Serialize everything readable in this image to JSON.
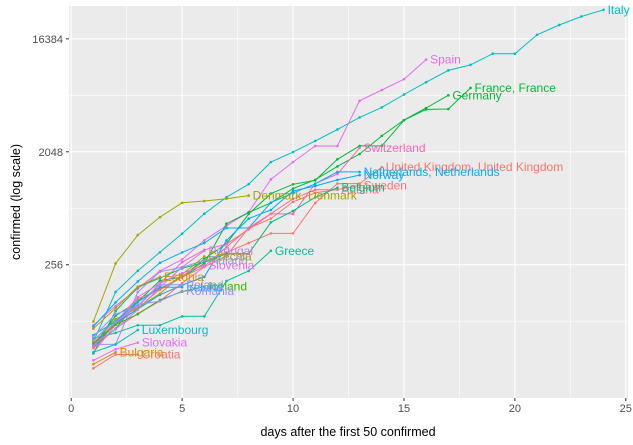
{
  "chart_data": {
    "type": "line",
    "title": "",
    "xlabel": "days after the first 50 confirmed",
    "ylabel": "confirmed  (log scale)",
    "y_scale": "log2",
    "xlim": [
      -0.1,
      25.1
    ],
    "ylim": [
      22,
      30000
    ],
    "x_ticks": [
      0,
      5,
      10,
      15,
      20,
      25
    ],
    "y_ticks": [
      256,
      2048,
      16384
    ],
    "grid": true,
    "legend": "none",
    "point_markers": true,
    "series": [
      {
        "name": "Italy",
        "color": "#00BFC4",
        "points": [
          [
            1,
            62
          ],
          [
            2,
            155
          ],
          [
            3,
            229
          ],
          [
            4,
            322
          ],
          [
            5,
            453
          ],
          [
            6,
            655
          ],
          [
            7,
            888
          ],
          [
            8,
            1128
          ],
          [
            9,
            1694
          ],
          [
            10,
            2036
          ],
          [
            11,
            2502
          ],
          [
            12,
            3089
          ],
          [
            13,
            3858
          ],
          [
            14,
            4636
          ],
          [
            15,
            5883
          ],
          [
            16,
            7375
          ],
          [
            17,
            9172
          ],
          [
            18,
            10149
          ],
          [
            19,
            12462
          ],
          [
            20,
            12462
          ],
          [
            21,
            17660
          ],
          [
            22,
            21157
          ],
          [
            23,
            24747
          ],
          [
            24,
            27980
          ]
        ],
        "label": "Italy"
      },
      {
        "name": "Spain",
        "color": "#E76BF3",
        "points": [
          [
            1,
            84
          ],
          [
            2,
            120
          ],
          [
            3,
            165
          ],
          [
            4,
            228
          ],
          [
            5,
            282
          ],
          [
            6,
            401
          ],
          [
            7,
            525
          ],
          [
            8,
            674
          ],
          [
            9,
            1231
          ],
          [
            10,
            1695
          ],
          [
            11,
            2277
          ],
          [
            12,
            2277
          ],
          [
            13,
            5232
          ],
          [
            14,
            6391
          ],
          [
            15,
            7798
          ],
          [
            16,
            11178
          ]
        ],
        "label": "Spain"
      },
      {
        "name": "Germany",
        "color": "#00BA38",
        "points": [
          [
            1,
            57
          ],
          [
            2,
            79
          ],
          [
            3,
            130
          ],
          [
            4,
            165
          ],
          [
            5,
            203
          ],
          [
            6,
            262
          ],
          [
            7,
            545
          ],
          [
            8,
            670
          ],
          [
            9,
            800
          ],
          [
            10,
            1040
          ],
          [
            11,
            1224
          ],
          [
            12,
            1565
          ],
          [
            13,
            1966
          ],
          [
            14,
            2745
          ],
          [
            15,
            3675
          ],
          [
            16,
            4585
          ],
          [
            17,
            5795
          ]
        ],
        "label": "Germany"
      },
      {
        "name": "France",
        "color": "#00BA38",
        "points": [
          [
            1,
            57
          ],
          [
            2,
            100
          ],
          [
            3,
            130
          ],
          [
            4,
            191
          ],
          [
            5,
            204
          ],
          [
            6,
            285
          ],
          [
            7,
            377
          ],
          [
            8,
            653
          ],
          [
            9,
            949
          ],
          [
            10,
            1126
          ],
          [
            11,
            1209
          ],
          [
            12,
            1784
          ],
          [
            13,
            2281
          ],
          [
            14,
            2281
          ],
          [
            15,
            3661
          ],
          [
            16,
            4469
          ],
          [
            17,
            4499
          ],
          [
            18,
            6633
          ]
        ],
        "label": "France, France"
      },
      {
        "name": "Switzerland",
        "color": "#FF62BC",
        "points": [
          [
            1,
            56
          ],
          [
            2,
            87
          ],
          [
            3,
            120
          ],
          [
            4,
            181
          ],
          [
            5,
            268
          ],
          [
            6,
            337
          ],
          [
            7,
            374
          ],
          [
            8,
            491
          ],
          [
            9,
            652
          ],
          [
            10,
            652
          ],
          [
            11,
            1139
          ],
          [
            12,
            1359
          ],
          [
            13,
            2200
          ]
        ],
        "label": "Switzerland"
      },
      {
        "name": "United Kingdom",
        "color": "#F8766D",
        "points": [
          [
            1,
            51
          ],
          [
            2,
            85
          ],
          [
            3,
            115
          ],
          [
            4,
            163
          ],
          [
            5,
            206
          ],
          [
            6,
            273
          ],
          [
            7,
            321
          ],
          [
            8,
            382
          ],
          [
            9,
            456
          ],
          [
            10,
            456
          ],
          [
            11,
            798
          ],
          [
            12,
            1140
          ],
          [
            13,
            1140
          ],
          [
            14,
            1543
          ]
        ],
        "label": "United Kingdom, United Kingdom"
      },
      {
        "name": "Netherlands",
        "color": "#00B0F6",
        "points": [
          [
            1,
            82
          ],
          [
            2,
            128
          ],
          [
            3,
            188
          ],
          [
            4,
            265
          ],
          [
            5,
            321
          ],
          [
            6,
            382
          ],
          [
            7,
            503
          ],
          [
            8,
            503
          ],
          [
            9,
            804
          ],
          [
            10,
            959
          ],
          [
            11,
            1135
          ],
          [
            12,
            1413
          ],
          [
            13,
            1413
          ]
        ],
        "label": "Netherlands, Netherlands"
      },
      {
        "name": "Norway",
        "color": "#00A9FF",
        "points": [
          [
            1,
            56
          ],
          [
            2,
            87
          ],
          [
            3,
            113
          ],
          [
            4,
            147
          ],
          [
            5,
            176
          ],
          [
            6,
            205
          ],
          [
            7,
            400
          ],
          [
            8,
            598
          ],
          [
            9,
            702
          ],
          [
            10,
            996
          ],
          [
            11,
            1090
          ],
          [
            12,
            1221
          ],
          [
            13,
            1333
          ]
        ],
        "label": "Norway"
      },
      {
        "name": "Sweden",
        "color": "#F8766D",
        "points": [
          [
            1,
            61
          ],
          [
            2,
            87
          ],
          [
            3,
            137
          ],
          [
            4,
            161
          ],
          [
            5,
            203
          ],
          [
            6,
            248
          ],
          [
            7,
            355
          ],
          [
            8,
            500
          ],
          [
            9,
            599
          ],
          [
            10,
            814
          ],
          [
            11,
            961
          ],
          [
            12,
            1022
          ],
          [
            13,
            1103
          ]
        ],
        "label": "Sweden"
      },
      {
        "name": "Austria",
        "color": "#FF6C91",
        "points": [
          [
            1,
            55
          ],
          [
            2,
            79
          ],
          [
            3,
            104
          ],
          [
            4,
            131
          ],
          [
            5,
            182
          ],
          [
            6,
            246
          ],
          [
            7,
            302
          ],
          [
            8,
            504
          ],
          [
            9,
            655
          ],
          [
            10,
            860
          ],
          [
            11,
            1018
          ],
          [
            12,
            1018
          ]
        ],
        "label": "Austria"
      },
      {
        "name": "Denmark",
        "color": "#A3A500",
        "points": [
          [
            1,
            90
          ],
          [
            2,
            262
          ],
          [
            3,
            442
          ],
          [
            4,
            615
          ],
          [
            5,
            801
          ],
          [
            6,
            827
          ],
          [
            7,
            864
          ],
          [
            8,
            914
          ]
        ],
        "label": "Denmark, Denmark"
      },
      {
        "name": "Belgium",
        "color": "#00BF7D",
        "points": [
          [
            1,
            50
          ],
          [
            2,
            109
          ],
          [
            3,
            169
          ],
          [
            4,
            200
          ],
          [
            5,
            239
          ],
          [
            6,
            267
          ],
          [
            7,
            314
          ],
          [
            8,
            314
          ],
          [
            9,
            559
          ],
          [
            10,
            689
          ],
          [
            11,
            886
          ],
          [
            12,
            1058
          ]
        ],
        "label": "Belgium"
      },
      {
        "name": "Greece",
        "color": "#00C19F",
        "points": [
          [
            1,
            66
          ],
          [
            2,
            73
          ],
          [
            3,
            84
          ],
          [
            4,
            84
          ],
          [
            5,
            99
          ],
          [
            6,
            99
          ],
          [
            7,
            190
          ],
          [
            8,
            228
          ],
          [
            9,
            331
          ]
        ],
        "label": "Greece"
      },
      {
        "name": "Portugal",
        "color": "#C77CFF",
        "points": [
          [
            1,
            59
          ],
          [
            2,
            78
          ],
          [
            3,
            112
          ],
          [
            4,
            169
          ],
          [
            5,
            245
          ],
          [
            6,
            331
          ]
        ],
        "label": "Portugal"
      },
      {
        "name": "Finland",
        "color": "#9590FF",
        "points": [
          [
            1,
            59
          ],
          [
            2,
            59
          ],
          [
            3,
            155
          ],
          [
            4,
            225
          ],
          [
            5,
            244
          ],
          [
            6,
            277
          ]
        ],
        "label": "Finland"
      },
      {
        "name": "Czechia",
        "color": "#A3A500",
        "points": [
          [
            1,
            63
          ],
          [
            2,
            94
          ],
          [
            3,
            116
          ],
          [
            4,
            150
          ],
          [
            5,
            214
          ],
          [
            6,
            298
          ]
        ],
        "label": "Czechia"
      },
      {
        "name": "Slovenia",
        "color": "#E76BF3",
        "points": [
          [
            1,
            57
          ],
          [
            2,
            89
          ],
          [
            3,
            141
          ],
          [
            4,
            181
          ],
          [
            5,
            219
          ],
          [
            6,
            253
          ]
        ],
        "label": "Slovenia"
      },
      {
        "name": "Estonia",
        "color": "#D89000",
        "points": [
          [
            1,
            79
          ],
          [
            2,
            115
          ],
          [
            3,
            171
          ],
          [
            4,
            205
          ]
        ],
        "label": "Estonia"
      },
      {
        "name": "Iceland",
        "color": "#39B600",
        "points": [
          [
            1,
            60
          ],
          [
            2,
            85
          ],
          [
            3,
            103
          ],
          [
            4,
            134
          ],
          [
            5,
            156
          ],
          [
            6,
            171
          ]
        ],
        "label": "Iceland"
      },
      {
        "name": "Ireland",
        "color": "#00B0F6",
        "points": [
          [
            1,
            70
          ],
          [
            2,
            90
          ],
          [
            3,
            129
          ],
          [
            4,
            169
          ],
          [
            5,
            169
          ]
        ],
        "label": "Ireland"
      },
      {
        "name": "Poland",
        "color": "#9590FF",
        "points": [
          [
            1,
            68
          ],
          [
            2,
            103
          ],
          [
            3,
            119
          ],
          [
            4,
            177
          ],
          [
            5,
            177
          ]
        ],
        "label": "Poland"
      },
      {
        "name": "Romania",
        "color": "#9590FF",
        "points": [
          [
            1,
            64
          ],
          [
            2,
            89
          ],
          [
            3,
            123
          ],
          [
            4,
            131
          ],
          [
            5,
            158
          ]
        ],
        "label": "Romania"
      },
      {
        "name": "Luxembourg",
        "color": "#00BFC4",
        "points": [
          [
            1,
            51
          ],
          [
            2,
            59
          ],
          [
            3,
            77
          ]
        ],
        "label": "Luxembourg"
      },
      {
        "name": "Slovakia",
        "color": "#E76BF3",
        "points": [
          [
            1,
            44
          ],
          [
            2,
            54
          ],
          [
            3,
            61
          ]
        ],
        "label": "Slovakia"
      },
      {
        "name": "Croatia",
        "color": "#F8766D",
        "points": [
          [
            1,
            38
          ],
          [
            2,
            49
          ],
          [
            3,
            49
          ]
        ],
        "label": "Croatia"
      },
      {
        "name": "Bulgaria",
        "color": "#D89000",
        "points": [
          [
            1,
            41
          ],
          [
            2,
            51
          ]
        ],
        "label": "Bulgaria"
      }
    ]
  }
}
